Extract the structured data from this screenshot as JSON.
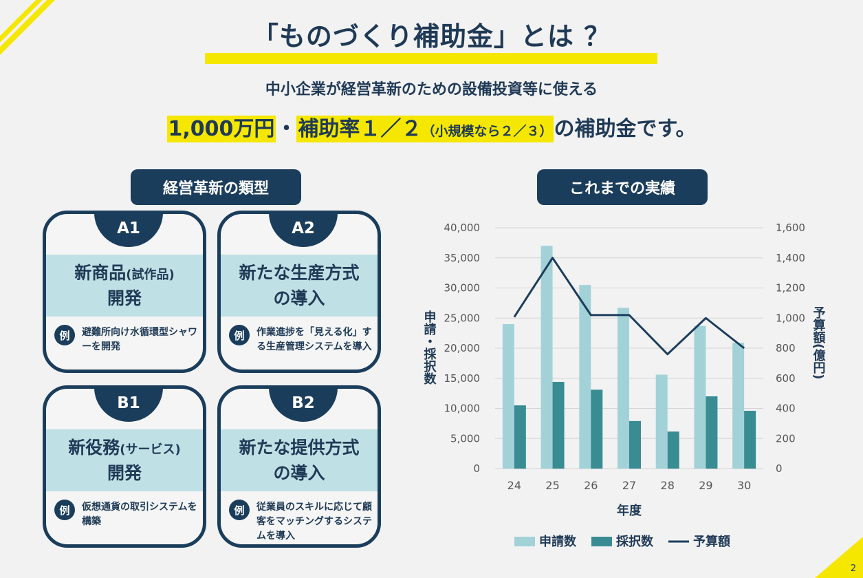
{
  "title": "「ものづくり補助金」とは ？",
  "subtitle": "中小企業が経営革新のための設備投資等に使える",
  "headline": {
    "amount": "1,000万円",
    "separator": "・",
    "rate": "補助率１／２",
    "rate_small": "（小規模なら２／３）",
    "suffix": "の補助金です。"
  },
  "left_section": {
    "label": "経営革新の類型",
    "cards": [
      {
        "tab": "A1",
        "line1": "新商品",
        "line1_small": "(試作品)",
        "line2": "開発",
        "badge": "例",
        "example": "避難所向け水循環型シャワーを開発"
      },
      {
        "tab": "A2",
        "line1": "新たな生産方式",
        "line1_small": "",
        "line2": "の導入",
        "badge": "例",
        "example": "作業進捗を「見える化」する生産管理システムを導入"
      },
      {
        "tab": "B1",
        "line1": "新役務",
        "line1_small": "(サービス)",
        "line2": "開発",
        "badge": "例",
        "example": "仮想通貨の取引システムを構築"
      },
      {
        "tab": "B2",
        "line1": "新たな提供方式",
        "line1_small": "",
        "line2": "の導入",
        "badge": "例",
        "example": "従業員のスキルに応じて顧客をマッチングするシステムを導入"
      }
    ]
  },
  "right_section": {
    "label": "これまでの実績"
  },
  "chart_data": {
    "type": "bar",
    "categories": [
      "24",
      "25",
      "26",
      "27",
      "28",
      "29",
      "30"
    ],
    "series": [
      {
        "name": "申請数",
        "type": "bar",
        "axis": "left",
        "color": "#a2d2d8",
        "values": [
          24000,
          37000,
          30500,
          26700,
          15600,
          23700,
          20900
        ]
      },
      {
        "name": "採択数",
        "type": "bar",
        "axis": "left",
        "color": "#3a8c93",
        "values": [
          10500,
          14400,
          13100,
          7900,
          6150,
          12000,
          9600
        ]
      },
      {
        "name": "予算額",
        "type": "line",
        "axis": "right",
        "color": "#1b3d5c",
        "values": [
          1007,
          1400,
          1020,
          1020,
          760,
          1000,
          800
        ]
      }
    ],
    "xlabel": "年度",
    "ylabel_left": "申請・採択数",
    "ylabel_right": "予算額(億円)",
    "ylim_left": [
      0,
      40000
    ],
    "ylim_right": [
      0,
      1600
    ],
    "yticks_left": [
      "0",
      "5,000",
      "10,000",
      "15,000",
      "20,000",
      "25,000",
      "30,000",
      "35,000",
      "40,000"
    ],
    "yticks_right": [
      "0",
      "200",
      "400",
      "600",
      "800",
      "1,000",
      "1,200",
      "1,400",
      "1,600"
    ],
    "grid": true,
    "legend": "bottom"
  },
  "page_number": "2",
  "colors": {
    "navy": "#1b3d5c",
    "yellow": "#f5e700",
    "light_teal": "#bfe1e5"
  }
}
